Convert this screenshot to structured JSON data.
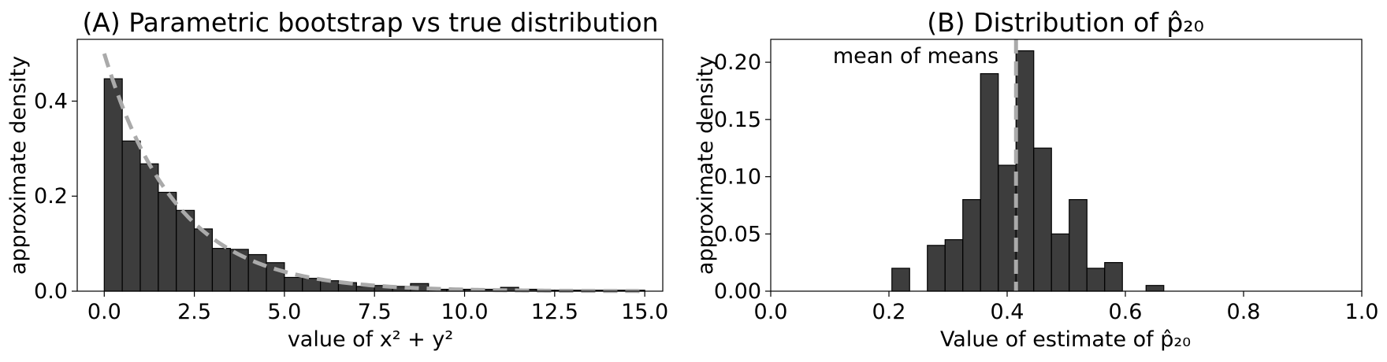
{
  "chart_data": [
    {
      "type": "bar",
      "title": "(A) Parametric bootstrap vs true distribution",
      "xlabel": "value of x² + y²",
      "ylabel": "approximate density",
      "xlim": [
        -0.75,
        15.5
      ],
      "ylim": [
        0,
        0.53
      ],
      "xticks": [
        0.0,
        2.5,
        5.0,
        7.5,
        10.0,
        12.5,
        15.0
      ],
      "xtick_labels": [
        "0.0",
        "2.5",
        "5.0",
        "7.5",
        "10.0",
        "12.5",
        "15.0"
      ],
      "yticks": [
        0.0,
        0.2,
        0.4
      ],
      "ytick_labels": [
        "0.0",
        "0.2",
        "0.4"
      ],
      "bin_width": 0.5,
      "bin_starts": [
        0,
        0.5,
        1,
        1.5,
        2,
        2.5,
        3,
        3.5,
        4,
        4.5,
        5,
        5.5,
        6,
        6.5,
        7,
        7.5,
        8,
        8.5,
        9,
        9.5,
        10,
        10.5,
        11,
        11.5,
        12,
        12.5,
        13,
        13.5,
        14,
        14.5
      ],
      "values": [
        0.447,
        0.316,
        0.268,
        0.208,
        0.17,
        0.131,
        0.09,
        0.088,
        0.077,
        0.06,
        0.029,
        0.027,
        0.022,
        0.018,
        0.01,
        0.012,
        0.01,
        0.016,
        0.004,
        0.004,
        0.004,
        0.004,
        0.008,
        0.004,
        0.002,
        0.002,
        0.002,
        0.002,
        0.002,
        0.002
      ],
      "overlay": {
        "style": "dashed",
        "color": "#aaaaaa",
        "function": "0.5*exp(-x/2)",
        "x_range": [
          0,
          15
        ]
      },
      "grid": false,
      "bar_color": "#3d3d3d"
    },
    {
      "type": "bar",
      "title": "(B) Distribution of p̂₂₀",
      "xlabel": "Value of estimate of p̂₂₀",
      "ylabel": "approximate density",
      "xlim": [
        0.0,
        1.0
      ],
      "ylim": [
        0,
        0.22
      ],
      "xticks": [
        0.0,
        0.2,
        0.4,
        0.6,
        0.8,
        1.0
      ],
      "xtick_labels": [
        "0.0",
        "0.2",
        "0.4",
        "0.6",
        "0.8",
        "1.0"
      ],
      "yticks": [
        0.0,
        0.05,
        0.1,
        0.15,
        0.2
      ],
      "ytick_labels": [
        "0.00",
        "0.05",
        "0.10",
        "0.15",
        "0.20"
      ],
      "bin_width": 0.03,
      "bin_starts": [
        0.205,
        0.265,
        0.295,
        0.325,
        0.355,
        0.385,
        0.415,
        0.445,
        0.475,
        0.505,
        0.535,
        0.565,
        0.635
      ],
      "values": [
        0.02,
        0.04,
        0.045,
        0.08,
        0.19,
        0.11,
        0.21,
        0.125,
        0.05,
        0.08,
        0.02,
        0.025,
        0.005
      ],
      "mean_line": {
        "x": 0.415,
        "label": "mean of means",
        "color": "#aaaaaa"
      },
      "grid": false,
      "bar_color": "#3d3d3d"
    }
  ]
}
